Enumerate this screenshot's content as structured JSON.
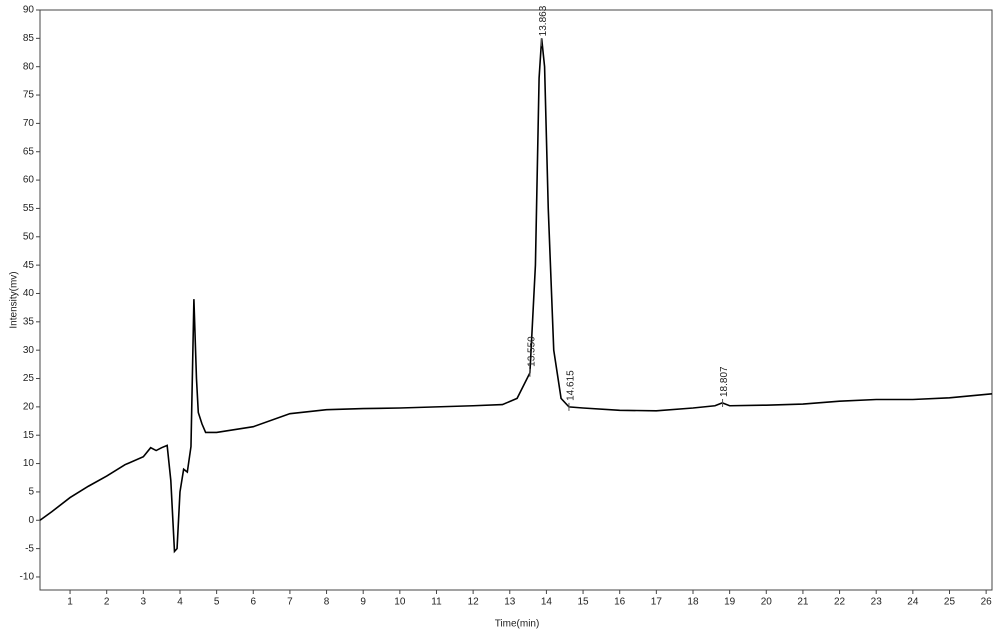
{
  "chart_data": {
    "type": "line",
    "xlabel": "Time(min)",
    "ylabel": "Intensity(mv)",
    "color": "#000000",
    "x": [
      0.18,
      0.5,
      1,
      1.5,
      2,
      2.5,
      3,
      3.2,
      3.35,
      3.5,
      3.65,
      3.75,
      3.85,
      3.92,
      4.0,
      4.1,
      4.2,
      4.3,
      4.38,
      4.45,
      4.5,
      4.6,
      4.7,
      5,
      6,
      7,
      8,
      9,
      10,
      11,
      12,
      12.8,
      13.2,
      13.55,
      13.7,
      13.8,
      13.87,
      13.95,
      14.05,
      14.2,
      14.4,
      14.615,
      15,
      16,
      17,
      18,
      18.6,
      18.8,
      19,
      20,
      21,
      22,
      23,
      24,
      25,
      26.16
    ],
    "values": [
      0,
      1.5,
      4,
      6,
      7.8,
      9.8,
      11.2,
      12.8,
      12.3,
      12.8,
      13.2,
      7,
      -5.5,
      -5,
      5,
      9,
      8.5,
      13,
      39,
      25,
      19,
      17,
      15.5,
      15.5,
      16.5,
      18.8,
      19.5,
      19.7,
      19.8,
      20,
      20.2,
      20.4,
      21.5,
      26,
      45,
      78,
      85,
      80,
      55,
      30,
      21.5,
      20,
      19.8,
      19.4,
      19.3,
      19.8,
      20.2,
      20.7,
      20.2,
      20.3,
      20.5,
      21,
      21.3,
      21.3,
      21.6,
      22.3
    ],
    "peaks": [
      {
        "value": 13.55,
        "label": "13.550"
      },
      {
        "value": 13.863,
        "label": "13.863"
      },
      {
        "value": 14.615,
        "label": "14.615"
      },
      {
        "value": 18.807,
        "label": "18.807"
      }
    ],
    "xlim": [
      0.18,
      26.16
    ],
    "ylim": [
      -12.3,
      90
    ],
    "xticks": [
      1,
      2,
      3,
      4,
      5,
      6,
      7,
      8,
      9,
      10,
      11,
      12,
      13,
      14,
      15,
      16,
      17,
      18,
      19,
      20,
      21,
      22,
      23,
      24,
      25,
      26
    ],
    "yticks": [
      -10,
      -5,
      0,
      5,
      10,
      15,
      20,
      25,
      30,
      35,
      40,
      45,
      50,
      55,
      60,
      65,
      70,
      75,
      80,
      85,
      90
    ]
  }
}
